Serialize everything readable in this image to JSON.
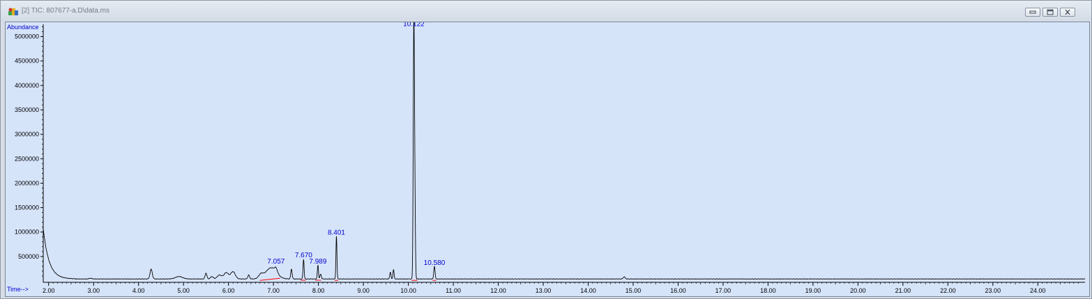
{
  "window": {
    "title": "[2] TIC: 807677-a.D\\data.ms",
    "icon": "chromatogram-app-icon",
    "controls": [
      "minimize",
      "restore",
      "close"
    ]
  },
  "chart_data": {
    "type": "line",
    "ylabel": "Abundance",
    "xlabel": "Time-->",
    "xlim": [
      1.88,
      25.05
    ],
    "ylim": [
      0,
      5250000
    ],
    "x_ticks": [
      2,
      3,
      4,
      5,
      6,
      7,
      8,
      9,
      10,
      11,
      12,
      13,
      14,
      15,
      16,
      17,
      18,
      19,
      20,
      21,
      22,
      23,
      24
    ],
    "x_tick_labels": [
      "2.00",
      "3.00",
      "4.00",
      "5.00",
      "6.00",
      "7.00",
      "8.00",
      "9.00",
      "10.00",
      "11.00",
      "12.00",
      "13.00",
      "14.00",
      "15.00",
      "16.00",
      "17.00",
      "18.00",
      "19.00",
      "20.00",
      "21.00",
      "22.00",
      "23.00",
      "24.00"
    ],
    "y_ticks": [
      500000,
      1000000,
      1500000,
      2000000,
      2500000,
      3000000,
      3500000,
      4000000,
      4500000,
      5000000
    ],
    "y_tick_labels": [
      "500000",
      "1000000",
      "1500000",
      "2000000",
      "2500000",
      "3000000",
      "3500000",
      "4000000",
      "4500000",
      "5000000"
    ],
    "baseline_level": 40000,
    "initial_decay": {
      "start_time": 1.88,
      "start_abundance": 1070000,
      "end_time": 2.3,
      "end_abundance": 40000
    },
    "peaks": [
      {
        "time": 2.93,
        "abundance": 15000,
        "width": 0.03
      },
      {
        "time": 4.28,
        "abundance": 200000,
        "width": 0.025
      },
      {
        "time": 4.9,
        "abundance": 50000,
        "width": 0.08
      },
      {
        "time": 5.5,
        "abundance": 120000,
        "width": 0.02
      },
      {
        "time": 5.63,
        "abundance": 50000,
        "width": 0.03
      },
      {
        "time": 5.8,
        "abundance": 80000,
        "width": 0.05
      },
      {
        "time": 5.95,
        "abundance": 130000,
        "width": 0.05
      },
      {
        "time": 6.1,
        "abundance": 150000,
        "width": 0.05
      },
      {
        "time": 6.45,
        "abundance": 80000,
        "width": 0.02
      },
      {
        "time": 6.72,
        "abundance": 80000,
        "width": 0.05
      },
      {
        "time": 6.95,
        "abundance": 230000,
        "width": 0.12
      },
      {
        "time": 7.057,
        "abundance": 80000,
        "width": 0.03
      },
      {
        "time": 7.4,
        "abundance": 200000,
        "width": 0.015
      },
      {
        "time": 7.67,
        "abundance": 400000,
        "width": 0.012
      },
      {
        "time": 7.989,
        "abundance": 280000,
        "width": 0.012
      },
      {
        "time": 8.05,
        "abundance": 100000,
        "width": 0.015
      },
      {
        "time": 8.401,
        "abundance": 880000,
        "width": 0.011
      },
      {
        "time": 9.6,
        "abundance": 140000,
        "width": 0.013
      },
      {
        "time": 9.67,
        "abundance": 190000,
        "width": 0.013
      },
      {
        "time": 10.122,
        "abundance": 5150000,
        "width": 0.013
      },
      {
        "time": 10.145,
        "abundance": 1500000,
        "width": 0.012
      },
      {
        "time": 10.58,
        "abundance": 260000,
        "width": 0.014
      },
      {
        "time": 14.8,
        "abundance": 45000,
        "width": 0.02
      }
    ],
    "peak_labels": [
      {
        "time": 7.057,
        "abundance": 300000,
        "text": "7.057"
      },
      {
        "time": 7.67,
        "abundance": 430000,
        "text": "7.670"
      },
      {
        "time": 7.989,
        "abundance": 300000,
        "text": "7.989"
      },
      {
        "time": 8.401,
        "abundance": 890000,
        "text": "8.401"
      },
      {
        "time": 10.122,
        "abundance": 5160000,
        "text": "10.122"
      },
      {
        "time": 10.58,
        "abundance": 270000,
        "text": "10.580"
      }
    ],
    "integration_marks": [
      {
        "start": 6.7,
        "end": 7.15,
        "start_abundance": 10000,
        "end_abundance": 55000
      },
      {
        "start": 7.6,
        "end": 7.72,
        "start_abundance": 15000,
        "end_abundance": 15000
      },
      {
        "start": 7.93,
        "end": 8.06,
        "start_abundance": 15000,
        "end_abundance": 15000
      },
      {
        "start": 8.36,
        "end": 8.44,
        "start_abundance": 12000,
        "end_abundance": 12000
      },
      {
        "start": 10.07,
        "end": 10.2,
        "start_abundance": 12000,
        "end_abundance": 12000
      },
      {
        "start": 10.54,
        "end": 10.62,
        "start_abundance": 12000,
        "end_abundance": 12000
      }
    ],
    "colors": {
      "background": "#d6e4fa",
      "trace": "#000000",
      "integration": "#ff0000",
      "labels": "#0000cc"
    }
  }
}
